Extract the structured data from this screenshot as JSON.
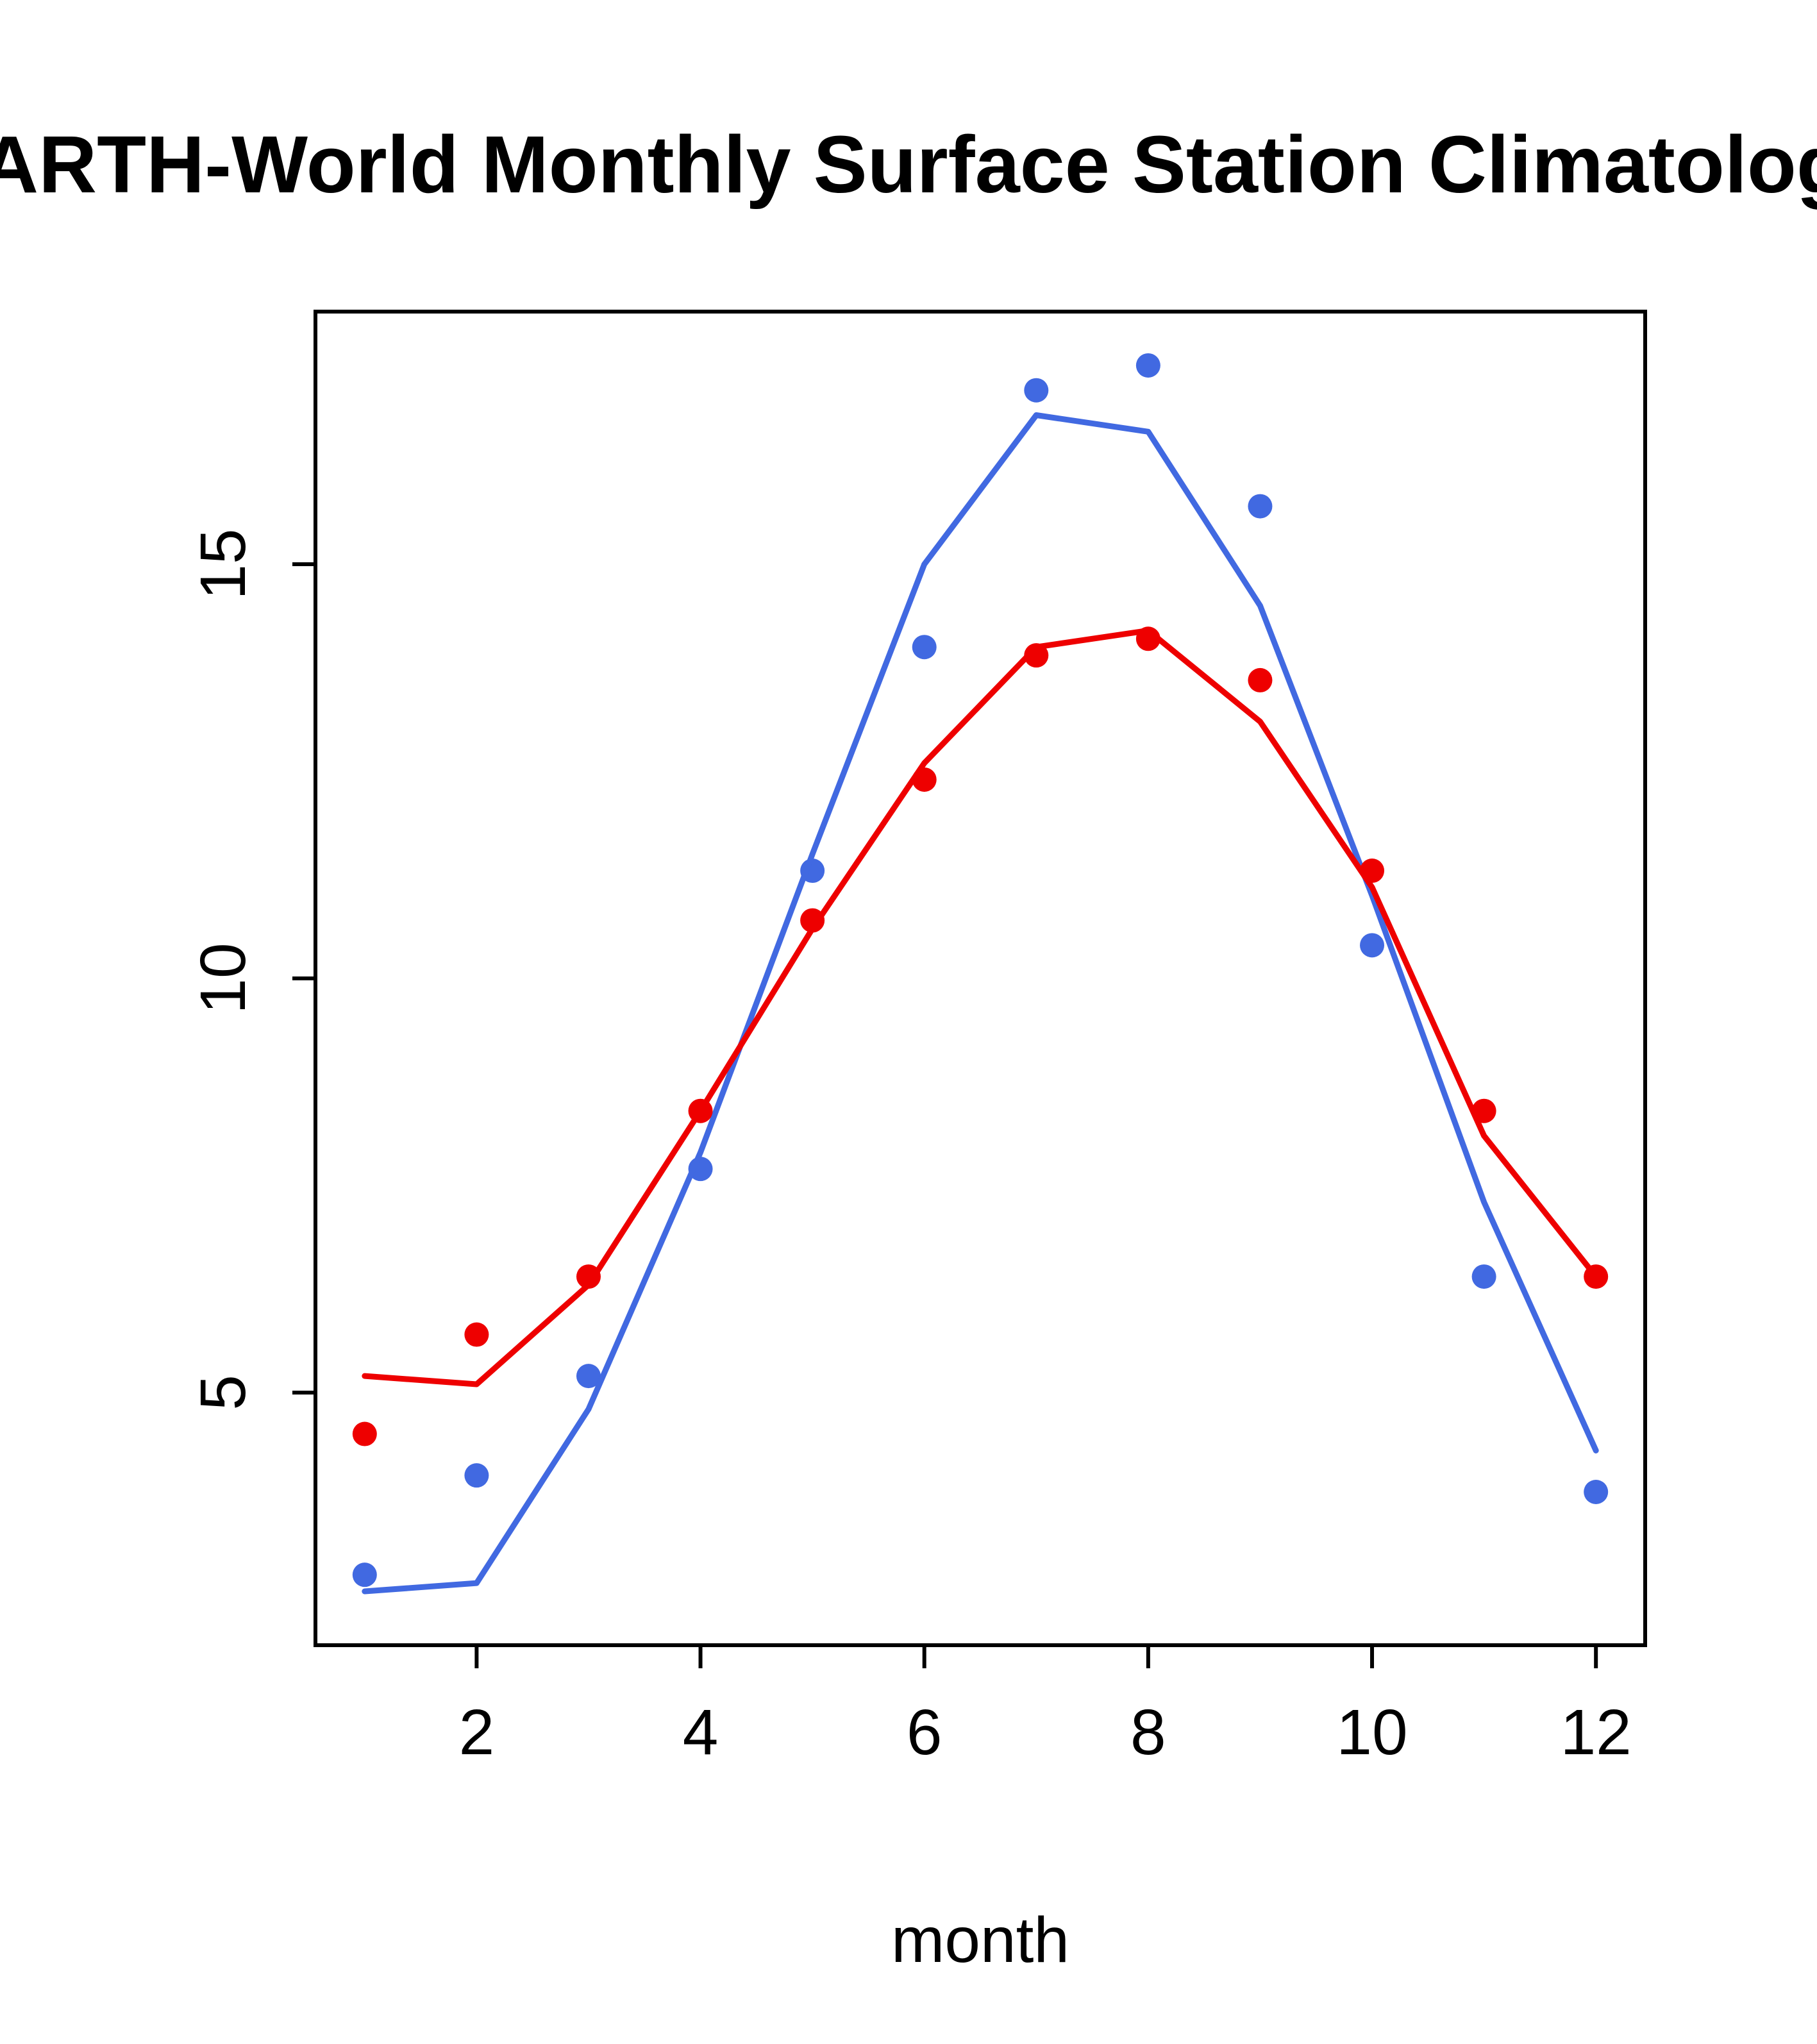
{
  "chart_data": {
    "type": "line",
    "title": "EARTH-World Monthly Surface Station Climatology",
    "xlabel": "month",
    "ylabel": "",
    "x": [
      1,
      2,
      3,
      4,
      5,
      6,
      7,
      8,
      9,
      10,
      11,
      12
    ],
    "xticks": [
      2,
      4,
      6,
      8,
      10,
      12
    ],
    "yticks": [
      5,
      10,
      15
    ],
    "xlim": [
      0.56,
      12.44
    ],
    "ylim": [
      1.95,
      18.05
    ],
    "grid": false,
    "legend_position": "none",
    "colors": {
      "blue_series": "#4169E1",
      "red_series": "#EE0000",
      "axis": "#000000"
    },
    "series": [
      {
        "name": "blue-monthly-points",
        "draw": "scatter",
        "color": "#4169E1",
        "values": [
          2.8,
          4.0,
          5.2,
          7.7,
          11.3,
          14.0,
          17.1,
          17.4,
          15.7,
          10.4,
          6.4,
          3.8
        ]
      },
      {
        "name": "blue-smooth-line",
        "draw": "line",
        "color": "#4169E1",
        "values": [
          2.6,
          2.7,
          4.8,
          7.9,
          11.5,
          15.0,
          16.8,
          16.6,
          14.5,
          11.0,
          7.3,
          4.3
        ]
      },
      {
        "name": "red-monthly-points",
        "draw": "scatter",
        "color": "#EE0000",
        "values": [
          4.5,
          5.7,
          6.4,
          8.4,
          10.7,
          12.4,
          13.9,
          14.1,
          13.6,
          11.3,
          8.4,
          6.4
        ]
      },
      {
        "name": "red-smooth-line",
        "draw": "line",
        "color": "#EE0000",
        "values": [
          5.2,
          5.1,
          6.3,
          8.4,
          10.6,
          12.6,
          14.0,
          14.2,
          13.1,
          11.1,
          8.1,
          6.4
        ]
      }
    ]
  }
}
